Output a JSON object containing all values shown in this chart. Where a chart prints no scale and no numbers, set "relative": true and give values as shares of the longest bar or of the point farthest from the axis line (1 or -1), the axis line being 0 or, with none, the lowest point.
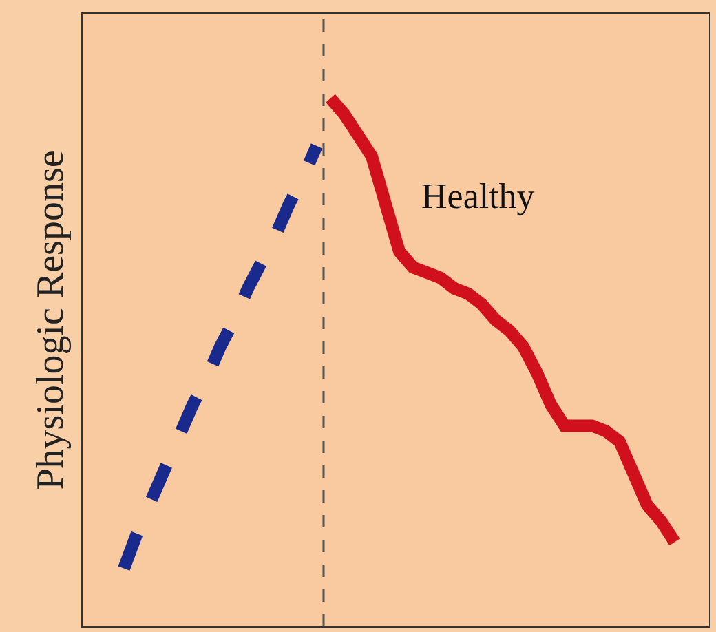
{
  "chart_data": {
    "type": "line",
    "relative": true,
    "ylabel": "Physiologic Response",
    "annotations": [
      "Healthy"
    ],
    "categories": [
      null,
      null,
      null,
      null,
      null,
      null,
      null,
      null,
      null,
      null,
      null,
      null,
      null,
      null,
      null,
      null,
      null,
      null,
      null,
      null,
      null,
      null,
      null,
      null,
      null,
      null,
      null,
      null,
      null,
      null,
      null,
      null,
      null,
      null,
      null,
      null,
      null,
      null,
      null,
      null,
      null
    ],
    "series": [
      {
        "color": "#1a2a8c",
        "line_style": "dashed",
        "values": [
          0.11,
          0.18,
          0.24,
          0.3,
          0.36,
          0.42,
          0.47,
          0.53,
          0.58,
          0.64,
          0.69,
          0.74,
          0.8,
          0.85,
          0.91,
          null,
          null,
          null,
          null,
          null,
          null,
          null,
          null,
          null,
          null,
          null,
          null,
          null,
          null,
          null,
          null,
          null,
          null,
          null,
          null,
          null,
          null,
          null,
          null,
          null,
          null
        ]
      },
      {
        "color": "#d0101c",
        "line_style": "solid",
        "values": [
          null,
          null,
          null,
          null,
          null,
          null,
          null,
          null,
          null,
          null,
          null,
          null,
          null,
          null,
          null,
          1.0,
          0.97,
          0.93,
          0.89,
          0.8,
          0.71,
          0.68,
          0.67,
          0.66,
          0.64,
          0.63,
          0.61,
          0.58,
          0.56,
          0.53,
          0.48,
          0.42,
          0.38,
          0.38,
          0.38,
          0.37,
          0.35,
          0.29,
          0.23,
          0.2,
          0.16
        ]
      }
    ],
    "grid": false,
    "legend": false,
    "marker": "none"
  }
}
